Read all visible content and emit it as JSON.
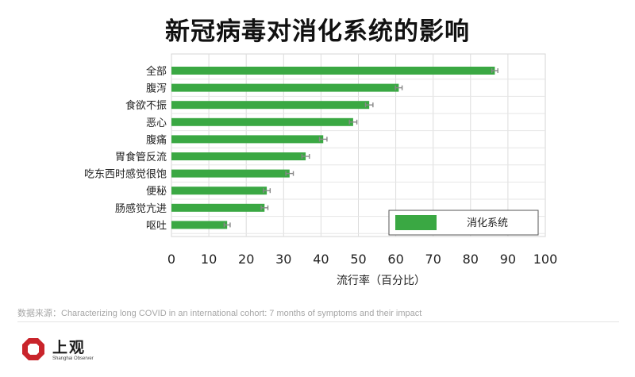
{
  "chart_data": {
    "type": "bar",
    "orientation": "horizontal",
    "title": "新冠病毒对消化系统的影响",
    "xlabel": "流行率（百分比）",
    "ylabel": "",
    "xlim": [
      0,
      100
    ],
    "x_ticks": [
      "0",
      "10",
      "20",
      "30",
      "40",
      "50",
      "60",
      "70",
      "80",
      "90",
      "100"
    ],
    "categories": [
      "全部",
      "腹泻",
      "食欲不振",
      "恶心",
      "腹痛",
      "胃食管反流",
      "吃东西时感觉很饱",
      "便秘",
      "肠感觉亢进",
      "呕吐"
    ],
    "series": [
      {
        "name": "消化系统",
        "color": "#3aa843",
        "values": [
          86.5,
          60.8,
          52.9,
          48.6,
          40.6,
          35.9,
          31.6,
          25.5,
          24.9,
          14.9
        ],
        "error": [
          0.8,
          0.9,
          1.0,
          1.0,
          1.0,
          1.0,
          1.0,
          0.9,
          0.9,
          0.8
        ]
      }
    ],
    "grid": true,
    "legend_position": "bottom-right"
  },
  "source": "数据来源：Characterizing long COVID in an international cohort: 7 months of symptoms and their impact",
  "brand": {
    "name": "上观",
    "subtitle": "Shanghai Observer",
    "color": "#c9242b",
    "icon": "octagon-logo-icon"
  }
}
